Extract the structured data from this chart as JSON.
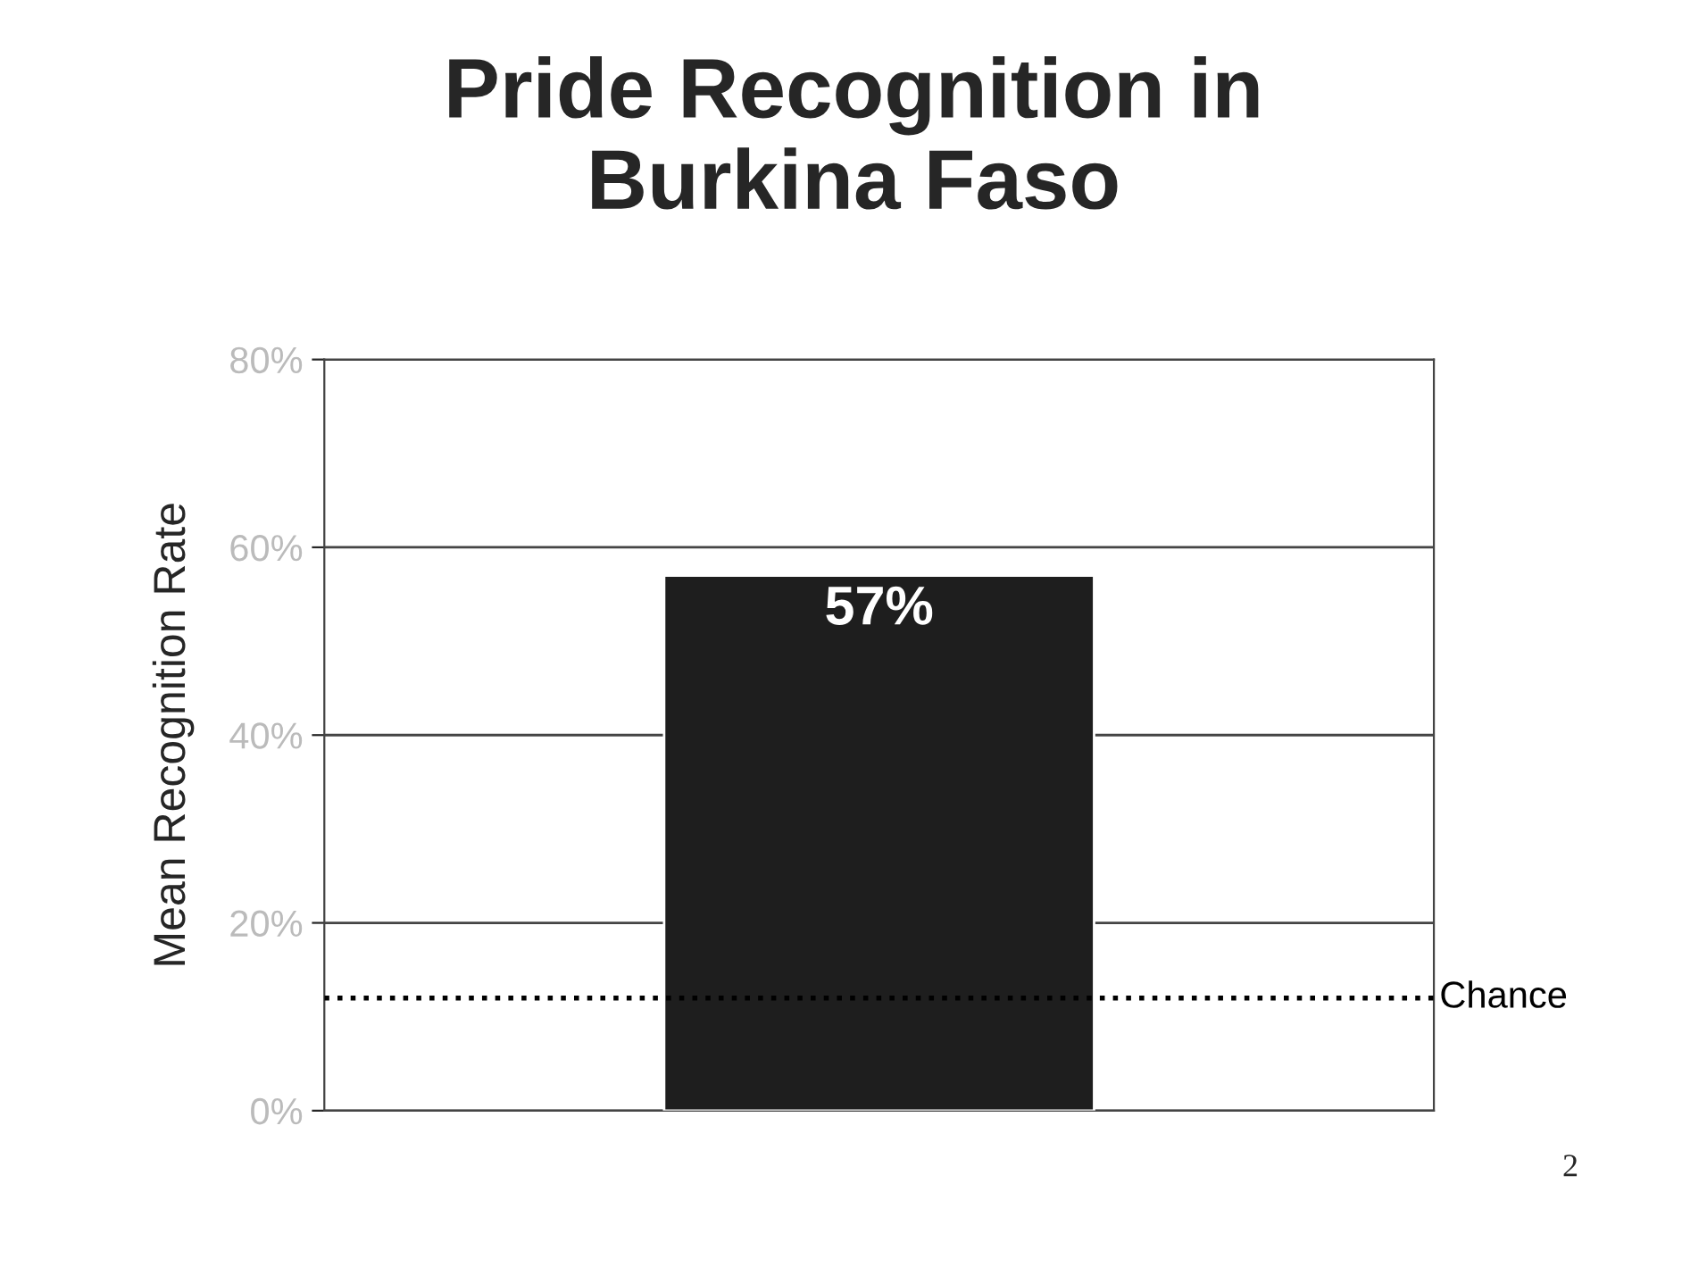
{
  "chart_data": {
    "type": "bar",
    "title": "Pride Recognition in\nBurkina Faso",
    "ylabel": "Mean Recognition Rate",
    "categories": [
      null
    ],
    "values": [
      57
    ],
    "value_labels": [
      "57%"
    ],
    "color": "#1e1e1e",
    "ylim": [
      0,
      80
    ],
    "yticks": [
      {
        "value": 0,
        "label": "0%"
      },
      {
        "value": 20,
        "label": "20%"
      },
      {
        "value": 40,
        "label": "40%"
      },
      {
        "value": 60,
        "label": "60%"
      },
      {
        "value": 80,
        "label": "80%"
      }
    ],
    "grid": "y",
    "ref_lines": [
      {
        "axis": "y",
        "value": 12,
        "label": "Chance",
        "color": "#000000",
        "line_style": "dotted"
      }
    ],
    "annotations": [
      "2"
    ]
  }
}
